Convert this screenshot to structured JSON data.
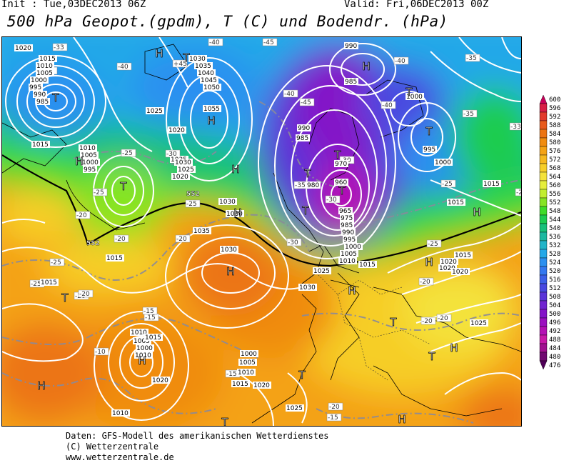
{
  "header": {
    "init": "Init : Tue,03DEC2013 06Z",
    "valid": "Valid: Fri,06DEC2013 00Z",
    "title": "500 hPa Geopot.(gpdm), T (C) und Bodendr. (hPa)"
  },
  "footer": {
    "line1": "Daten: GFS-Modell des amerikanischen Wetterdienstes",
    "line2": "(C) Wetterzentrale",
    "line3": "www.wetterzentrale.de"
  },
  "colorbar": {
    "labels": [
      "600",
      "596",
      "592",
      "588",
      "584",
      "580",
      "576",
      "572",
      "568",
      "564",
      "560",
      "556",
      "552",
      "548",
      "544",
      "540",
      "536",
      "532",
      "528",
      "524",
      "520",
      "516",
      "512",
      "508",
      "504",
      "500",
      "496",
      "492",
      "488",
      "484",
      "480",
      "476"
    ],
    "colors": [
      "#c8005a",
      "#d81e46",
      "#e23a2c",
      "#e85a1c",
      "#ec7412",
      "#f08c10",
      "#f4a214",
      "#f6b81e",
      "#f6ce28",
      "#f4e23a",
      "#e6ee3c",
      "#c2ee30",
      "#86e424",
      "#3edc2a",
      "#1ccc50",
      "#18c07a",
      "#1cb8a0",
      "#20b4c8",
      "#24a8e8",
      "#2c90f0",
      "#3478f0",
      "#3c60e8",
      "#4848e0",
      "#5a34d8",
      "#7024d0",
      "#8414c8",
      "#9c10c0",
      "#b410b4",
      "#c818a8",
      "#a01090",
      "#700870",
      "#500058"
    ]
  },
  "map": {
    "pressure_centers": [
      {
        "sym": "T"
      },
      {
        "sym": "H"
      },
      {
        "sym": "T"
      },
      {
        "sym": "H"
      },
      {
        "sym": "T"
      },
      {
        "sym": "H"
      },
      {
        "sym": "T"
      },
      {
        "sym": "H"
      },
      {
        "sym": "T"
      },
      {
        "sym": "T"
      },
      {
        "sym": "H"
      },
      {
        "sym": "T"
      },
      {
        "sym": "T"
      },
      {
        "sym": "H"
      },
      {
        "sym": "H"
      },
      {
        "sym": "H"
      },
      {
        "sym": "T"
      },
      {
        "sym": "H"
      },
      {
        "sym": "T"
      },
      {
        "sym": "H"
      },
      {
        "sym": "T"
      },
      {
        "sym": "H"
      },
      {
        "sym": "T"
      },
      {
        "sym": "H"
      },
      {
        "sym": "H"
      },
      {
        "sym": "T"
      },
      {
        "sym": "H"
      },
      {
        "sym": "T"
      }
    ],
    "isobar_labels": [
      "1020",
      "1015",
      "1010",
      "1005",
      "1000",
      "995",
      "990",
      "985",
      "1030",
      "1035",
      "1040",
      "1045",
      "1050",
      "1055",
      "1025",
      "1020",
      "1015",
      "1010",
      "1005",
      "1000",
      "995",
      "1035",
      "1030",
      "1025",
      "1020",
      "1030",
      "1030",
      "1035",
      "1030",
      "1015",
      "1015",
      "1010",
      "1005",
      "1000",
      "1010",
      "990",
      "985",
      "990",
      "985",
      "1000",
      "995",
      "1000",
      "970",
      "960",
      "980",
      "965",
      "975",
      "985",
      "990",
      "995",
      "1000",
      "1005",
      "1010",
      "1025",
      "1015",
      "1030",
      "1015",
      "1020",
      "1020",
      "1015",
      "1020",
      "1025",
      "1015",
      "1020",
      "1015",
      "1015",
      "1010",
      "1005",
      "1000",
      "1020",
      "1025",
      "1010"
    ],
    "temp_labels": [
      "-33",
      "-30",
      "-40",
      "+45",
      "-40",
      "-45",
      "-40",
      "-35",
      "-40",
      "-33",
      "-45",
      "-40",
      "-35",
      "-25",
      "-30",
      "-25",
      "-20",
      "-20",
      "-25",
      "-20",
      "-25",
      "-20",
      "-25",
      "-20",
      "-15",
      "-15",
      "-10",
      "-15",
      "-20",
      "-15",
      "-20",
      "-20",
      "-25",
      "-20",
      "-20",
      "-30",
      "-30",
      "-35",
      "-30",
      "-25"
    ],
    "contour_552_label": "552"
  }
}
